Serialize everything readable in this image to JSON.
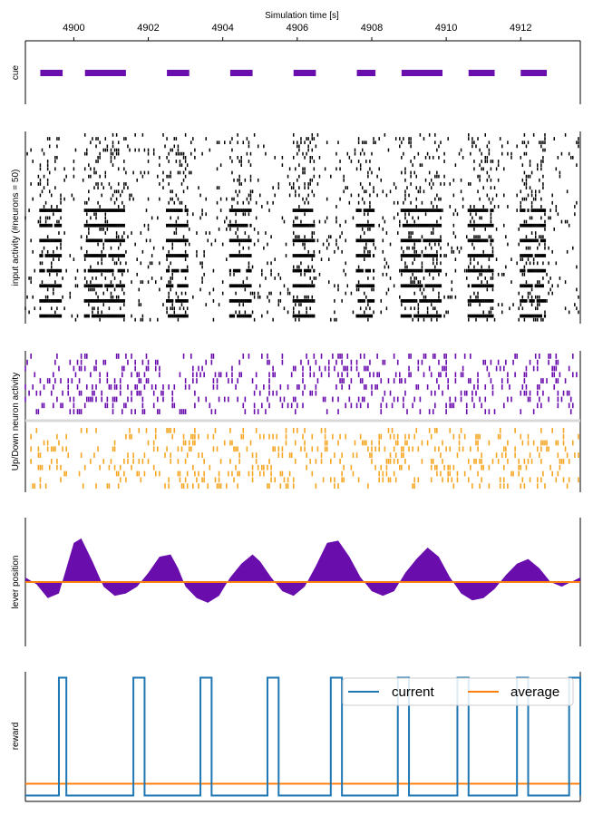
{
  "figure": {
    "xlabel": "Simulation time [s]",
    "xlim": [
      4898.7,
      4913.6
    ],
    "xticks": [
      4900,
      4902,
      4904,
      4906,
      4908,
      4910,
      4912
    ],
    "xtick_labels": [
      "4900",
      "4902",
      "4904",
      "4906",
      "4908",
      "4910",
      "4912"
    ]
  },
  "chart_data": [
    {
      "type": "timeline",
      "panel": "cue",
      "ylabel": "cue",
      "color": "#6a0dad",
      "intervals": [
        [
          4899.1,
          4899.7
        ],
        [
          4900.3,
          4901.4
        ],
        [
          4902.5,
          4903.1
        ],
        [
          4904.2,
          4904.8
        ],
        [
          4905.9,
          4906.5
        ],
        [
          4907.6,
          4908.1
        ],
        [
          4908.8,
          4909.9
        ],
        [
          4910.6,
          4911.3
        ],
        [
          4912.0,
          4912.7
        ]
      ]
    },
    {
      "type": "raster",
      "panel": "input",
      "ylabel": "input activity (#neurons = 50)",
      "n_neurons": 50,
      "color": "#000000"
    },
    {
      "type": "raster",
      "panel": "updown",
      "ylabel": "Up/Down neuron activity",
      "groups": [
        {
          "color": "#6a0dad",
          "n_neurons": 10
        },
        {
          "color": "#f5a623",
          "n_neurons": 10
        }
      ]
    },
    {
      "type": "area",
      "panel": "lever",
      "ylabel": "lever position",
      "fill_color": "#6a0dad",
      "line_color": "#ff7f0e",
      "baseline": 0,
      "ylim": [
        -1.4,
        1.4
      ],
      "x": [
        4898.7,
        4899.0,
        4899.3,
        4899.6,
        4899.8,
        4900.0,
        4900.2,
        4900.5,
        4900.8,
        4901.1,
        4901.4,
        4901.7,
        4902.0,
        4902.3,
        4902.6,
        4902.8,
        4903.0,
        4903.3,
        4903.6,
        4903.9,
        4904.2,
        4904.5,
        4904.8,
        4905.0,
        4905.3,
        4905.6,
        4905.9,
        4906.2,
        4906.5,
        4906.8,
        4907.1,
        4907.4,
        4907.7,
        4908.0,
        4908.3,
        4908.6,
        4908.9,
        4909.2,
        4909.5,
        4909.8,
        4910.1,
        4910.4,
        4910.7,
        4911.0,
        4911.3,
        4911.6,
        4911.9,
        4912.2,
        4912.5,
        4912.8,
        4913.1,
        4913.6
      ],
      "y": [
        0.1,
        -0.05,
        -0.35,
        -0.25,
        0.3,
        0.85,
        0.95,
        0.45,
        -0.1,
        -0.3,
        -0.25,
        -0.1,
        0.2,
        0.55,
        0.6,
        0.3,
        -0.1,
        -0.35,
        -0.45,
        -0.3,
        0.1,
        0.4,
        0.6,
        0.45,
        0.1,
        -0.2,
        -0.3,
        -0.1,
        0.35,
        0.85,
        0.9,
        0.55,
        0.1,
        -0.2,
        -0.3,
        -0.2,
        0.2,
        0.5,
        0.75,
        0.55,
        0.1,
        -0.25,
        -0.4,
        -0.35,
        -0.15,
        0.15,
        0.4,
        0.5,
        0.3,
        0.0,
        -0.1,
        0.1
      ],
      "average": 0.0
    },
    {
      "type": "line",
      "panel": "reward",
      "ylabel": "reward",
      "ylim": [
        -0.05,
        1.05
      ],
      "legend": {
        "placement": "upper right",
        "entries": [
          "current",
          "average"
        ]
      },
      "series": [
        {
          "name": "current",
          "color": "#1f77b4",
          "pulses": [
            [
              4899.6,
              4899.8
            ],
            [
              4901.6,
              4901.9
            ],
            [
              4903.4,
              4903.7
            ],
            [
              4905.2,
              4905.5
            ],
            [
              4906.9,
              4907.2
            ],
            [
              4908.7,
              4909.0
            ],
            [
              4910.3,
              4910.6
            ],
            [
              4911.9,
              4912.2
            ],
            [
              4913.3,
              4913.6
            ]
          ]
        },
        {
          "name": "average",
          "color": "#ff7f0e",
          "value": 0.1
        }
      ]
    }
  ]
}
